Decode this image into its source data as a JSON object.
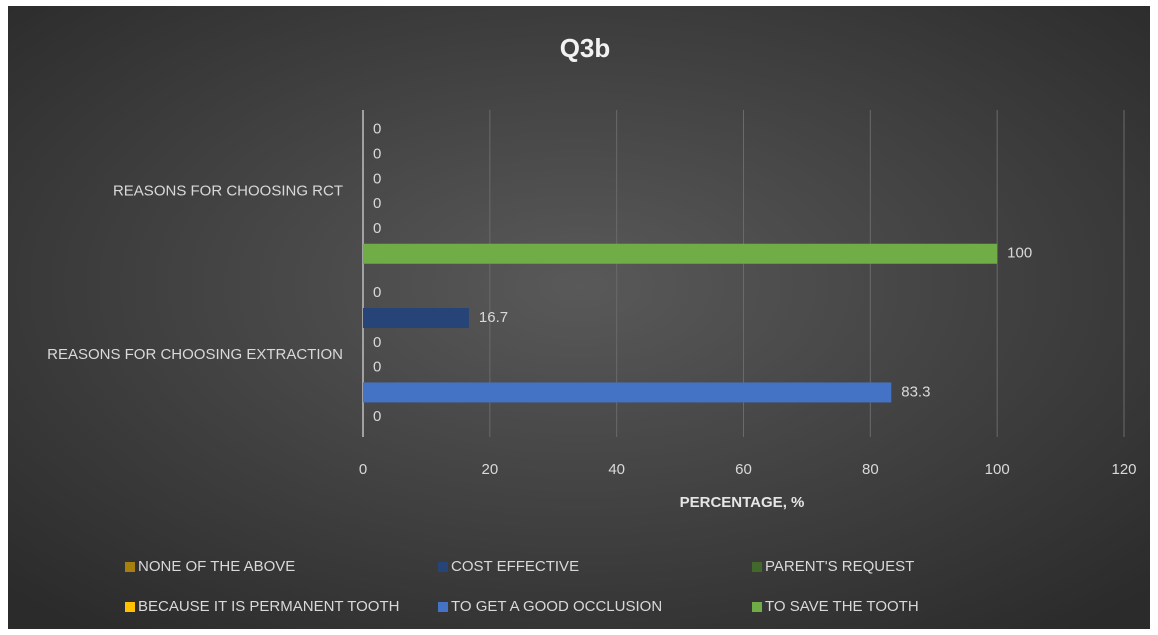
{
  "chart_data": {
    "type": "hbar",
    "title": "Q3b",
    "x_label": "PERCENTAGE, %",
    "categories": [
      "REASONS FOR CHOOSING EXTRACTION",
      "REASONS FOR CHOOSING RCT"
    ],
    "series": [
      {
        "name": "NONE OF THE ABOVE",
        "color": "#a5800f",
        "values": [
          0,
          0
        ]
      },
      {
        "name": "COST EFFECTIVE",
        "color": "#264478",
        "values": [
          16.7,
          0
        ]
      },
      {
        "name": "PARENT'S REQUEST",
        "color": "#43682b",
        "values": [
          0,
          0
        ]
      },
      {
        "name": "BECAUSE IT IS PERMANENT TOOTH",
        "color": "#ffc000",
        "values": [
          0,
          0
        ]
      },
      {
        "name": "TO GET A GOOD OCCLUSION",
        "color": "#4472c4",
        "values": [
          83.3,
          0
        ]
      },
      {
        "name": "TO SAVE THE TOOTH",
        "color": "#70ad47",
        "values": [
          0,
          100
        ]
      }
    ],
    "xlim": [
      0,
      120
    ],
    "xticks": [
      0,
      20,
      40,
      60,
      80,
      100,
      120
    ],
    "grid": true,
    "legend": "bottom"
  }
}
